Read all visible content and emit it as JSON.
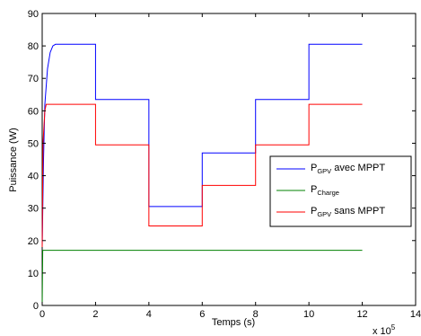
{
  "chart_data": {
    "type": "line",
    "title": "",
    "xlabel": "Temps (s)",
    "ylabel": "Puissance (W)",
    "x_multiplier": "x 10",
    "x_multiplier_exp": "5",
    "xlim": [
      0,
      14
    ],
    "ylim": [
      0,
      90
    ],
    "x_ticks": [
      0,
      2,
      4,
      6,
      8,
      10,
      12,
      14
    ],
    "y_ticks": [
      0,
      10,
      20,
      30,
      40,
      50,
      60,
      70,
      80,
      90
    ],
    "legend_position": "right-middle",
    "grid": false,
    "series": [
      {
        "name_main": "P",
        "name_sub": "GPV",
        "name_rest": " avec MPPT",
        "color": "#0000ff",
        "x": [
          0,
          0.05,
          0.1,
          0.2,
          0.3,
          0.4,
          0.5,
          2,
          2,
          4,
          4,
          6,
          6,
          8,
          8,
          10,
          10,
          12
        ],
        "y": [
          18,
          45,
          62,
          73,
          78,
          80,
          80.5,
          80.5,
          63.5,
          63.5,
          30.5,
          30.5,
          47,
          47,
          63.5,
          63.5,
          80.5,
          80.5
        ]
      },
      {
        "name_main": "P",
        "name_sub": "Charge",
        "name_rest": "",
        "color": "#008000",
        "x": [
          0,
          0.02,
          12
        ],
        "y": [
          0,
          17,
          17
        ]
      },
      {
        "name_main": "P",
        "name_sub": "GPV",
        "name_rest": " sans MPPT",
        "color": "#ff0000",
        "x": [
          0,
          0.03,
          0.1,
          0.15,
          2,
          2,
          4,
          4,
          6,
          6,
          8,
          8,
          10,
          10,
          12
        ],
        "y": [
          18,
          50,
          60,
          62,
          62,
          49.5,
          49.5,
          24.5,
          24.5,
          37,
          37,
          49.5,
          49.5,
          62,
          62
        ]
      }
    ]
  }
}
